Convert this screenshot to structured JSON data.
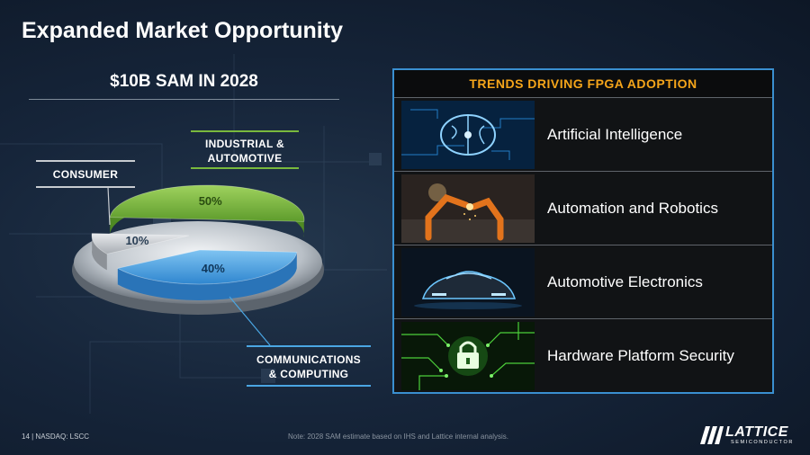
{
  "slide": {
    "title": "Expanded Market Opportunity",
    "sam_heading": "$10B SAM IN 2028",
    "footer_page": "14  |  NASDAQ: LSCC",
    "footer_note": "Note: 2028 SAM estimate based on IHS and Lattice internal analysis."
  },
  "chart_data": {
    "type": "pie",
    "title": "$10B SAM IN 2028",
    "slices": [
      {
        "label": "INDUSTRIAL & AUTOMOTIVE",
        "value": 50,
        "value_label": "50%",
        "color": "#79b93d"
      },
      {
        "label": "COMMUNICATIONS & COMPUTING",
        "value": 40,
        "value_label": "40%",
        "color": "#4aa6e3"
      },
      {
        "label": "CONSUMER",
        "value": 10,
        "value_label": "10%",
        "color": "#c7cbd0"
      }
    ],
    "label_lines": [
      "INDUSTRIAL &",
      "AUTOMOTIVE",
      "COMMUNICATIONS",
      "& COMPUTING",
      "CONSUMER"
    ]
  },
  "trends": {
    "heading": "TRENDS DRIVING FPGA ADOPTION",
    "items": [
      {
        "label": "Artificial Intelligence",
        "icon": "brain-circuit-icon"
      },
      {
        "label": "Automation and Robotics",
        "icon": "robot-arm-icon"
      },
      {
        "label": "Automotive Electronics",
        "icon": "car-icon"
      },
      {
        "label": "Hardware Platform Security",
        "icon": "padlock-circuit-icon"
      }
    ]
  },
  "logo": {
    "word": "LATTICE",
    "sub": "SEMICONDUCTOR"
  },
  "colors": {
    "accent_orange": "#f5a51a",
    "panel_border": "#3a8fd0",
    "green": "#79b93d",
    "blue": "#4aa6e3",
    "gray": "#c7cbd0"
  }
}
